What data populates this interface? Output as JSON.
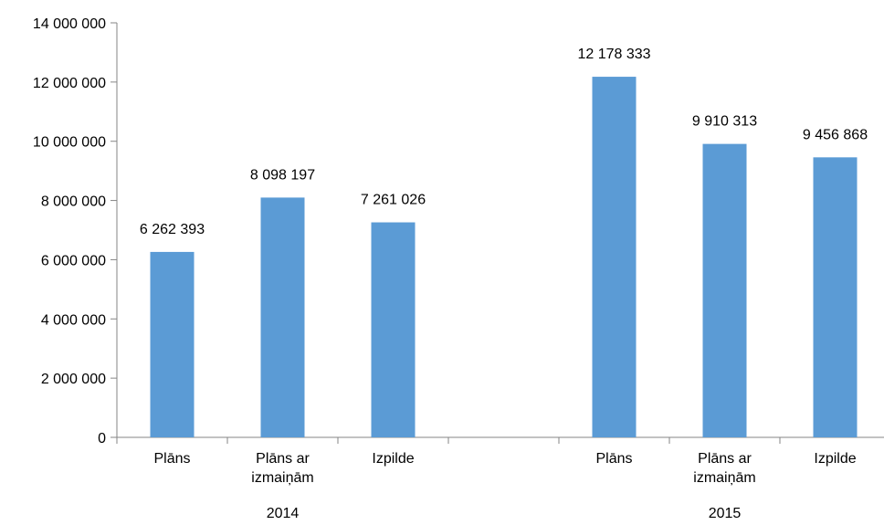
{
  "chart_data": {
    "type": "bar",
    "title": "",
    "xlabel": "",
    "ylabel": "",
    "ylim": [
      0,
      14000000
    ],
    "y_ticks": [
      0,
      2000000,
      4000000,
      6000000,
      8000000,
      10000000,
      12000000,
      14000000
    ],
    "y_tick_labels": [
      "0",
      "2 000 000",
      "4 000 000",
      "6 000 000",
      "8 000 000",
      "10 000 000",
      "12 000 000",
      "14 000 000"
    ],
    "grid": false,
    "legend": "none",
    "groups": [
      {
        "label": "2014",
        "categories": [
          {
            "label": "Plāns",
            "value": 6262393,
            "value_label": "6 262 393"
          },
          {
            "label": "Plāns ar izmaiņām",
            "value": 8098197,
            "value_label": "8 098 197"
          },
          {
            "label": "Izpilde",
            "value": 7261026,
            "value_label": "7 261 026"
          }
        ]
      },
      {
        "label": "2015",
        "categories": [
          {
            "label": "Plāns",
            "value": 12178333,
            "value_label": "12 178 333"
          },
          {
            "label": "Plāns ar izmaiņām",
            "value": 9910313,
            "value_label": "9 910 313"
          },
          {
            "label": "Izpilde",
            "value": 9456868,
            "value_label": "9 456 868"
          }
        ]
      }
    ],
    "colors": {
      "bar": "#5B9BD5",
      "axis": "#868686",
      "text": "#000000"
    }
  }
}
